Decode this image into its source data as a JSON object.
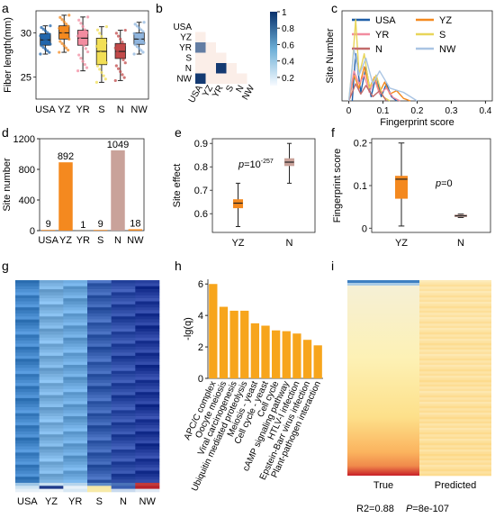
{
  "chart_data": [
    {
      "panel": "a",
      "type": "box",
      "ylabel": "Fiber length(mm)",
      "categories": [
        "USA",
        "YZ",
        "YR",
        "S",
        "N",
        "NW"
      ],
      "ylim": [
        22.5,
        32.5
      ],
      "yticks": [
        25,
        30
      ],
      "colors": [
        "#2166ac",
        "#f4891f",
        "#f28ca0",
        "#f2df55",
        "#c24a4a",
        "#8fb5de"
      ],
      "boxes": [
        {
          "q1": 28.6,
          "median": 29.2,
          "q3": 29.9,
          "whislo": 27.6,
          "whishi": 30.8
        },
        {
          "q1": 29.3,
          "median": 30.0,
          "q3": 30.8,
          "whislo": 27.8,
          "whishi": 32.0
        },
        {
          "q1": 28.6,
          "median": 29.4,
          "q3": 30.3,
          "whislo": 25.7,
          "whishi": 31.8
        },
        {
          "q1": 26.4,
          "median": 27.9,
          "q3": 29.4,
          "whislo": 24.4,
          "whishi": 30.7
        },
        {
          "q1": 27.1,
          "median": 27.9,
          "q3": 28.8,
          "whislo": 24.6,
          "whishi": 30.3
        },
        {
          "q1": 28.7,
          "median": 29.3,
          "q3": 30.0,
          "whislo": 27.6,
          "whishi": 31.2
        }
      ]
    },
    {
      "panel": "b",
      "type": "heatmap",
      "labels": [
        "USA",
        "YZ",
        "YR",
        "S",
        "N",
        "NW"
      ],
      "colorbar_ticks": [
        0.2,
        0.4,
        0.6,
        0.8,
        1.0
      ],
      "cells": [
        {
          "row": 2,
          "col": 0,
          "value": 0.62
        },
        {
          "row": 3,
          "col": 0,
          "value": 0.05
        },
        {
          "row": 4,
          "col": 0,
          "value": 0.05
        },
        {
          "row": 5,
          "col": 0,
          "value": 0.95
        },
        {
          "row": 3,
          "col": 1,
          "value": 0.05
        },
        {
          "row": 4,
          "col": 1,
          "value": 0.05
        },
        {
          "row": 5,
          "col": 1,
          "value": 0.05
        },
        {
          "row": 4,
          "col": 2,
          "value": 0.95
        },
        {
          "row": 5,
          "col": 2,
          "value": 0.05
        },
        {
          "row": 4,
          "col": 3,
          "value": 0.05
        },
        {
          "row": 5,
          "col": 3,
          "value": 0.05
        },
        {
          "row": 5,
          "col": 4,
          "value": 0.05
        }
      ]
    },
    {
      "panel": "c",
      "type": "line",
      "xlabel": "Fingerprint score",
      "ylabel": "Site Number",
      "xlim": [
        -0.02,
        0.42
      ],
      "xticks": [
        0.0,
        0.1,
        0.2,
        0.3,
        0.4
      ],
      "legend": "top-right",
      "series": [
        {
          "name": "USA",
          "color": "#1f5fa8",
          "x": [
            0.01,
            0.02,
            0.035,
            0.05,
            0.065,
            0.08,
            0.095,
            0.11,
            0.125,
            0.14
          ],
          "y": [
            0.0,
            0.55,
            0.1,
            0.4,
            0.05,
            0.3,
            0.05,
            0.2,
            0.05,
            0.0
          ]
        },
        {
          "name": "YZ",
          "color": "#f4891f",
          "x": [
            0.0,
            0.015,
            0.03,
            0.045,
            0.06,
            0.075,
            0.09,
            0.105,
            0.12,
            0.14,
            0.16,
            0.18
          ],
          "y": [
            0.0,
            0.3,
            0.15,
            0.4,
            0.15,
            0.28,
            0.1,
            0.22,
            0.08,
            0.12,
            0.03,
            0.0
          ]
        },
        {
          "name": "YR",
          "color": "#f28ca0",
          "x": [
            0.0,
            0.015,
            0.03,
            0.045,
            0.06,
            0.075,
            0.09,
            0.11,
            0.13,
            0.15
          ],
          "y": [
            0.0,
            0.35,
            0.2,
            0.3,
            0.1,
            0.25,
            0.08,
            0.15,
            0.04,
            0.0
          ]
        },
        {
          "name": "S",
          "color": "#e8d55a",
          "x": [
            0.0,
            0.01,
            0.02,
            0.03,
            0.045,
            0.06,
            0.08,
            0.1,
            0.12
          ],
          "y": [
            0.0,
            0.4,
            0.95,
            0.3,
            0.55,
            0.15,
            0.3,
            0.05,
            0.0
          ]
        },
        {
          "name": "N",
          "color": "#c26b6b",
          "x": [
            0.0,
            0.02,
            0.035,
            0.05,
            0.07,
            0.09,
            0.11
          ],
          "y": [
            0.0,
            0.2,
            0.08,
            0.18,
            0.05,
            0.12,
            0.0
          ]
        },
        {
          "name": "NW",
          "color": "#a9c4e3",
          "x": [
            0.0,
            0.015,
            0.03,
            0.05,
            0.07,
            0.09,
            0.12,
            0.16,
            0.2
          ],
          "y": [
            0.0,
            0.6,
            0.3,
            0.5,
            0.2,
            0.35,
            0.15,
            0.1,
            0.0
          ]
        }
      ]
    },
    {
      "panel": "d",
      "type": "bar",
      "ylabel": "Site number",
      "categories": [
        "USA",
        "YZ",
        "YR",
        "S",
        "N",
        "NW"
      ],
      "values": [
        9,
        892,
        1,
        9,
        1049,
        18
      ],
      "colors": [
        "#f4891f",
        "#f4891f",
        "#f4891f",
        "#f4891f",
        "#c9a29a",
        "#f4891f"
      ],
      "ylim": [
        0,
        1200
      ],
      "yticks": [
        0,
        400,
        800,
        1200
      ]
    },
    {
      "panel": "e",
      "type": "box",
      "ylabel": "Site effect",
      "categories": [
        "YZ",
        "N"
      ],
      "annotation": "p=10",
      "annotation_exp": "-257",
      "ylim": [
        0.52,
        0.92
      ],
      "yticks": [
        0.6,
        0.7,
        0.8,
        0.9
      ],
      "colors": [
        "#f4891f",
        "#c9a29a"
      ],
      "boxes": [
        {
          "q1": 0.625,
          "median": 0.645,
          "q3": 0.66,
          "whislo": 0.545,
          "whishi": 0.73
        },
        {
          "q1": 0.805,
          "median": 0.82,
          "q3": 0.835,
          "whislo": 0.73,
          "whishi": 0.9
        }
      ]
    },
    {
      "panel": "f",
      "type": "box",
      "ylabel": "Fingerprint score",
      "categories": [
        "YZ",
        "N"
      ],
      "annotation": "p=0",
      "ylim": [
        -0.01,
        0.21
      ],
      "yticks": [
        0.0,
        0.1,
        0.2
      ],
      "colors": [
        "#f4891f",
        "#c9a29a"
      ],
      "boxes": [
        {
          "q1": 0.07,
          "median": 0.115,
          "q3": 0.122,
          "whislo": 0.005,
          "whishi": 0.2
        },
        {
          "q1": 0.027,
          "median": 0.029,
          "q3": 0.031,
          "whislo": 0.025,
          "whishi": 0.033
        }
      ]
    },
    {
      "panel": "g",
      "type": "heatmap",
      "columns": [
        "USA",
        "YZ",
        "YR",
        "S",
        "N",
        "NW"
      ]
    },
    {
      "panel": "h",
      "type": "bar",
      "ylabel": "-lg(q)",
      "categories": [
        "APC/C complex",
        "Oocyte meiosis",
        "Viral carcinogenesis",
        "Ubiquitin mediated proteolysis",
        "Meiosis - yeast",
        "Cell cycle - yeast",
        "Cell cycle",
        "cAMP signaling pathway",
        "HTLV-I infection",
        "Epstein-Barr virus infection",
        "Plant-pathogen interaction"
      ],
      "values": [
        6.0,
        4.55,
        4.3,
        4.3,
        3.5,
        3.35,
        3.05,
        3.0,
        2.85,
        2.45,
        2.1
      ],
      "color": "#f7a51c",
      "ylim": [
        0,
        6.3
      ],
      "yticks": [
        0,
        2,
        4,
        6
      ]
    },
    {
      "panel": "i",
      "type": "heatmap",
      "columns": [
        "True",
        "Predicted"
      ],
      "footer": "R2=0.88",
      "footer_p": "P",
      "footer_p_value": "=8e-107"
    }
  ],
  "panel_labels": [
    "a",
    "b",
    "c",
    "d",
    "e",
    "f",
    "g",
    "h",
    "i"
  ]
}
